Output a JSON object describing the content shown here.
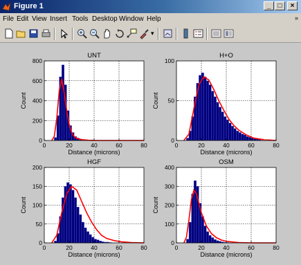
{
  "window": {
    "title": "Figure 1",
    "buttons": {
      "minimize": "_",
      "maximize": "□",
      "close": "×"
    }
  },
  "menubar": {
    "items": [
      "File",
      "Edit",
      "View",
      "Insert",
      "Tools",
      "Desktop",
      "Window",
      "Help"
    ],
    "overflow": "»"
  },
  "toolbar": {
    "icons": [
      "new-figure-icon",
      "open-file-icon",
      "save-icon",
      "print-icon",
      "edit-plot-arrow-icon",
      "zoom-in-icon",
      "zoom-out-icon",
      "pan-hand-icon",
      "rotate-3d-icon",
      "data-cursor-icon",
      "brush-icon",
      "link-plot-icon",
      "colorbar-icon",
      "legend-icon",
      "hide-plot-tools-icon",
      "show-plot-tools-icon"
    ]
  },
  "colors": {
    "bars": "#00007a",
    "bar_edge": "#5a5ad8",
    "fit": "#ff0000",
    "axes_bg": "#ffffff"
  },
  "chart_data": [
    {
      "type": "bar",
      "title": "UNT",
      "xlabel": "Distance (microns)",
      "ylabel": "Count",
      "xlim": [
        0,
        80
      ],
      "ylim": [
        0,
        800
      ],
      "xticks": [
        0,
        20,
        40,
        60,
        80
      ],
      "yticks": [
        0,
        200,
        400,
        600,
        800
      ],
      "grid": true,
      "bin_width": 2,
      "bin_start": 8,
      "values": [
        30,
        250,
        640,
        760,
        560,
        300,
        150,
        80,
        40,
        25,
        15,
        8,
        5,
        3,
        2
      ],
      "fit": {
        "x": [
          6,
          8,
          10,
          12,
          14,
          16,
          18,
          20,
          22,
          24,
          26,
          30,
          35,
          40,
          50,
          60,
          80
        ],
        "y": [
          0,
          40,
          220,
          500,
          620,
          480,
          300,
          160,
          80,
          40,
          20,
          8,
          3,
          1,
          0,
          0,
          0
        ]
      }
    },
    {
      "type": "bar",
      "title": "H+O",
      "xlabel": "Distance (microns)",
      "ylabel": "Count",
      "xlim": [
        0,
        80
      ],
      "ylim": [
        0,
        100
      ],
      "xticks": [
        0,
        20,
        40,
        60,
        80
      ],
      "yticks": [
        0,
        50,
        100
      ],
      "grid": true,
      "bin_width": 2,
      "bin_start": 8,
      "values": [
        3,
        12,
        30,
        55,
        72,
        82,
        85,
        80,
        75,
        70,
        62,
        55,
        48,
        42,
        36,
        30,
        26,
        22,
        18,
        15,
        12,
        10,
        8,
        7,
        5,
        4,
        3,
        2,
        2,
        1
      ],
      "fit": {
        "x": [
          6,
          10,
          14,
          18,
          22,
          26,
          30,
          34,
          38,
          42,
          46,
          50,
          56,
          62,
          70,
          80
        ],
        "y": [
          0,
          8,
          40,
          70,
          80,
          76,
          64,
          50,
          38,
          27,
          19,
          13,
          7,
          3,
          1,
          0
        ]
      }
    },
    {
      "type": "bar",
      "title": "HGF",
      "xlabel": "Distance (microns)",
      "ylabel": "Count",
      "xlim": [
        0,
        80
      ],
      "ylim": [
        0,
        200
      ],
      "xticks": [
        0,
        20,
        40,
        60,
        80
      ],
      "yticks": [
        0,
        50,
        100,
        150,
        200
      ],
      "grid": true,
      "bin_width": 2,
      "bin_start": 8,
      "values": [
        5,
        25,
        70,
        120,
        150,
        160,
        155,
        140,
        120,
        95,
        75,
        55,
        40,
        30,
        22,
        15,
        10,
        8,
        5,
        3,
        2,
        2,
        1
      ],
      "fit": {
        "x": [
          6,
          10,
          14,
          18,
          22,
          26,
          30,
          34,
          38,
          42,
          46,
          50,
          56,
          62,
          70,
          80
        ],
        "y": [
          0,
          20,
          80,
          130,
          150,
          140,
          110,
          80,
          55,
          35,
          20,
          12,
          6,
          3,
          1,
          0
        ]
      }
    },
    {
      "type": "bar",
      "title": "OSM",
      "xlabel": "Distance (microns)",
      "ylabel": "Count",
      "xlim": [
        0,
        80
      ],
      "ylim": [
        0,
        400
      ],
      "xticks": [
        0,
        20,
        40,
        60,
        80
      ],
      "yticks": [
        0,
        100,
        200,
        300,
        400
      ],
      "grid": true,
      "bin_width": 2,
      "bin_start": 8,
      "values": [
        20,
        110,
        260,
        330,
        300,
        210,
        140,
        90,
        60,
        40,
        28,
        18,
        12,
        8,
        5,
        3,
        2,
        1
      ],
      "fit": {
        "x": [
          6,
          8,
          10,
          12,
          14,
          16,
          18,
          20,
          24,
          28,
          32,
          36,
          40,
          50,
          60,
          80
        ],
        "y": [
          0,
          30,
          120,
          230,
          280,
          260,
          210,
          160,
          90,
          50,
          28,
          15,
          8,
          2,
          0,
          0
        ]
      }
    }
  ]
}
